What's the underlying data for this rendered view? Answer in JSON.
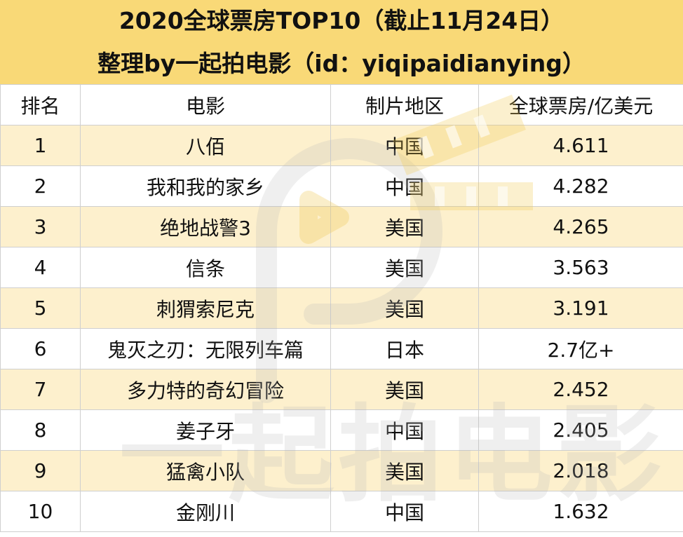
{
  "title": {
    "line1": "2020全球票房TOP10（截止11月24日）",
    "line2": "整理by一起拍电影（id：yiqipaidianying）"
  },
  "table": {
    "headers": {
      "rank": "排名",
      "film": "电影",
      "region": "制片地区",
      "box_office": "全球票房/亿美元"
    },
    "rows": [
      {
        "rank": "1",
        "film": "八佰",
        "region": "中国",
        "box_office": "4.611"
      },
      {
        "rank": "2",
        "film": "我和我的家乡",
        "region": "中国",
        "box_office": "4.282"
      },
      {
        "rank": "3",
        "film": "绝地战警3",
        "region": "美国",
        "box_office": "4.265"
      },
      {
        "rank": "4",
        "film": "信条",
        "region": "美国",
        "box_office": "3.563"
      },
      {
        "rank": "5",
        "film": "刺猬索尼克",
        "region": "美国",
        "box_office": "3.191"
      },
      {
        "rank": "6",
        "film": "鬼灭之刃：无限列车篇",
        "region": "日本",
        "box_office": "2.7亿+"
      },
      {
        "rank": "7",
        "film": "多力特的奇幻冒险",
        "region": "美国",
        "box_office": "2.452"
      },
      {
        "rank": "8",
        "film": "姜子牙",
        "region": "中国",
        "box_office": "2.405"
      },
      {
        "rank": "9",
        "film": "猛禽小队",
        "region": "美国",
        "box_office": "2.018"
      },
      {
        "rank": "10",
        "film": "金刚川",
        "region": "中国",
        "box_office": "1.632"
      }
    ]
  },
  "watermark": {
    "text": "一起拍电影"
  },
  "colors": {
    "title_background": "#f9d977",
    "odd_row_background": "#fdecc0",
    "grid_line": "#cfcfcf"
  }
}
